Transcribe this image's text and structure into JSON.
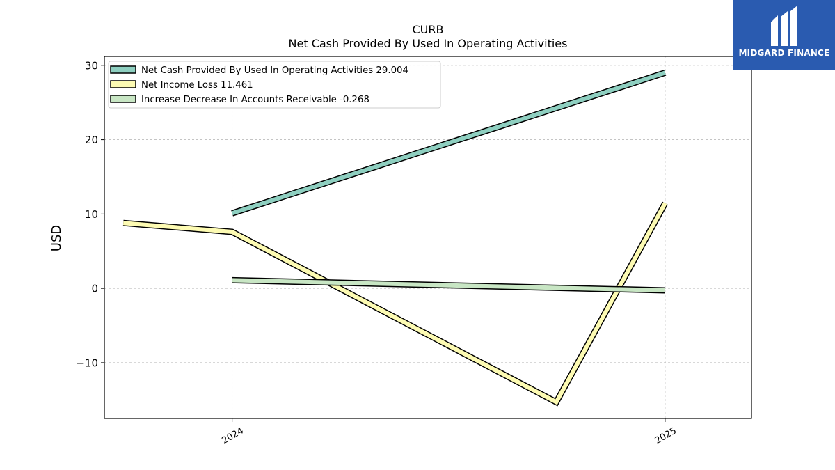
{
  "chart_data": {
    "type": "line",
    "title": "CURB",
    "subtitle": "Net Cash Provided By Used In Operating Activities",
    "ylabel": "USD",
    "xlabel": "",
    "x_ticks": [
      {
        "date": "2024-01-01",
        "label": "2024"
      },
      {
        "date": "2025-01-01",
        "label": "2025"
      }
    ],
    "x_range": [
      "2023-09-15",
      "2025-03-15"
    ],
    "ylim": [
      -17.5,
      31.2
    ],
    "y_ticks": [
      -10,
      0,
      10,
      20,
      30
    ],
    "y_tick_labels": [
      "−10",
      "0",
      "10",
      "20",
      "30"
    ],
    "grid": true,
    "legend_position": "top-left",
    "series": [
      {
        "name": "Net Cash Provided By Used In Operating Activities  29.004",
        "color": "#8ecfc0",
        "points": [
          {
            "x": "2024-01-01",
            "y": 10.1
          },
          {
            "x": "2025-01-01",
            "y": 29.004
          }
        ]
      },
      {
        "name": "Net Income Loss  11.461",
        "color": "#fdfbb3",
        "points": [
          {
            "x": "2023-10-01",
            "y": 8.8
          },
          {
            "x": "2024-01-01",
            "y": 7.6
          },
          {
            "x": "2024-10-01",
            "y": -15.3
          },
          {
            "x": "2025-01-01",
            "y": 11.461
          }
        ]
      },
      {
        "name": "Increase Decrease In Accounts Receivable  -0.268",
        "color": "#c8e6c4",
        "points": [
          {
            "x": "2024-01-01",
            "y": 1.1
          },
          {
            "x": "2025-01-01",
            "y": -0.268
          }
        ]
      }
    ]
  },
  "logo": {
    "text": "MIDGARD FINANCE"
  }
}
